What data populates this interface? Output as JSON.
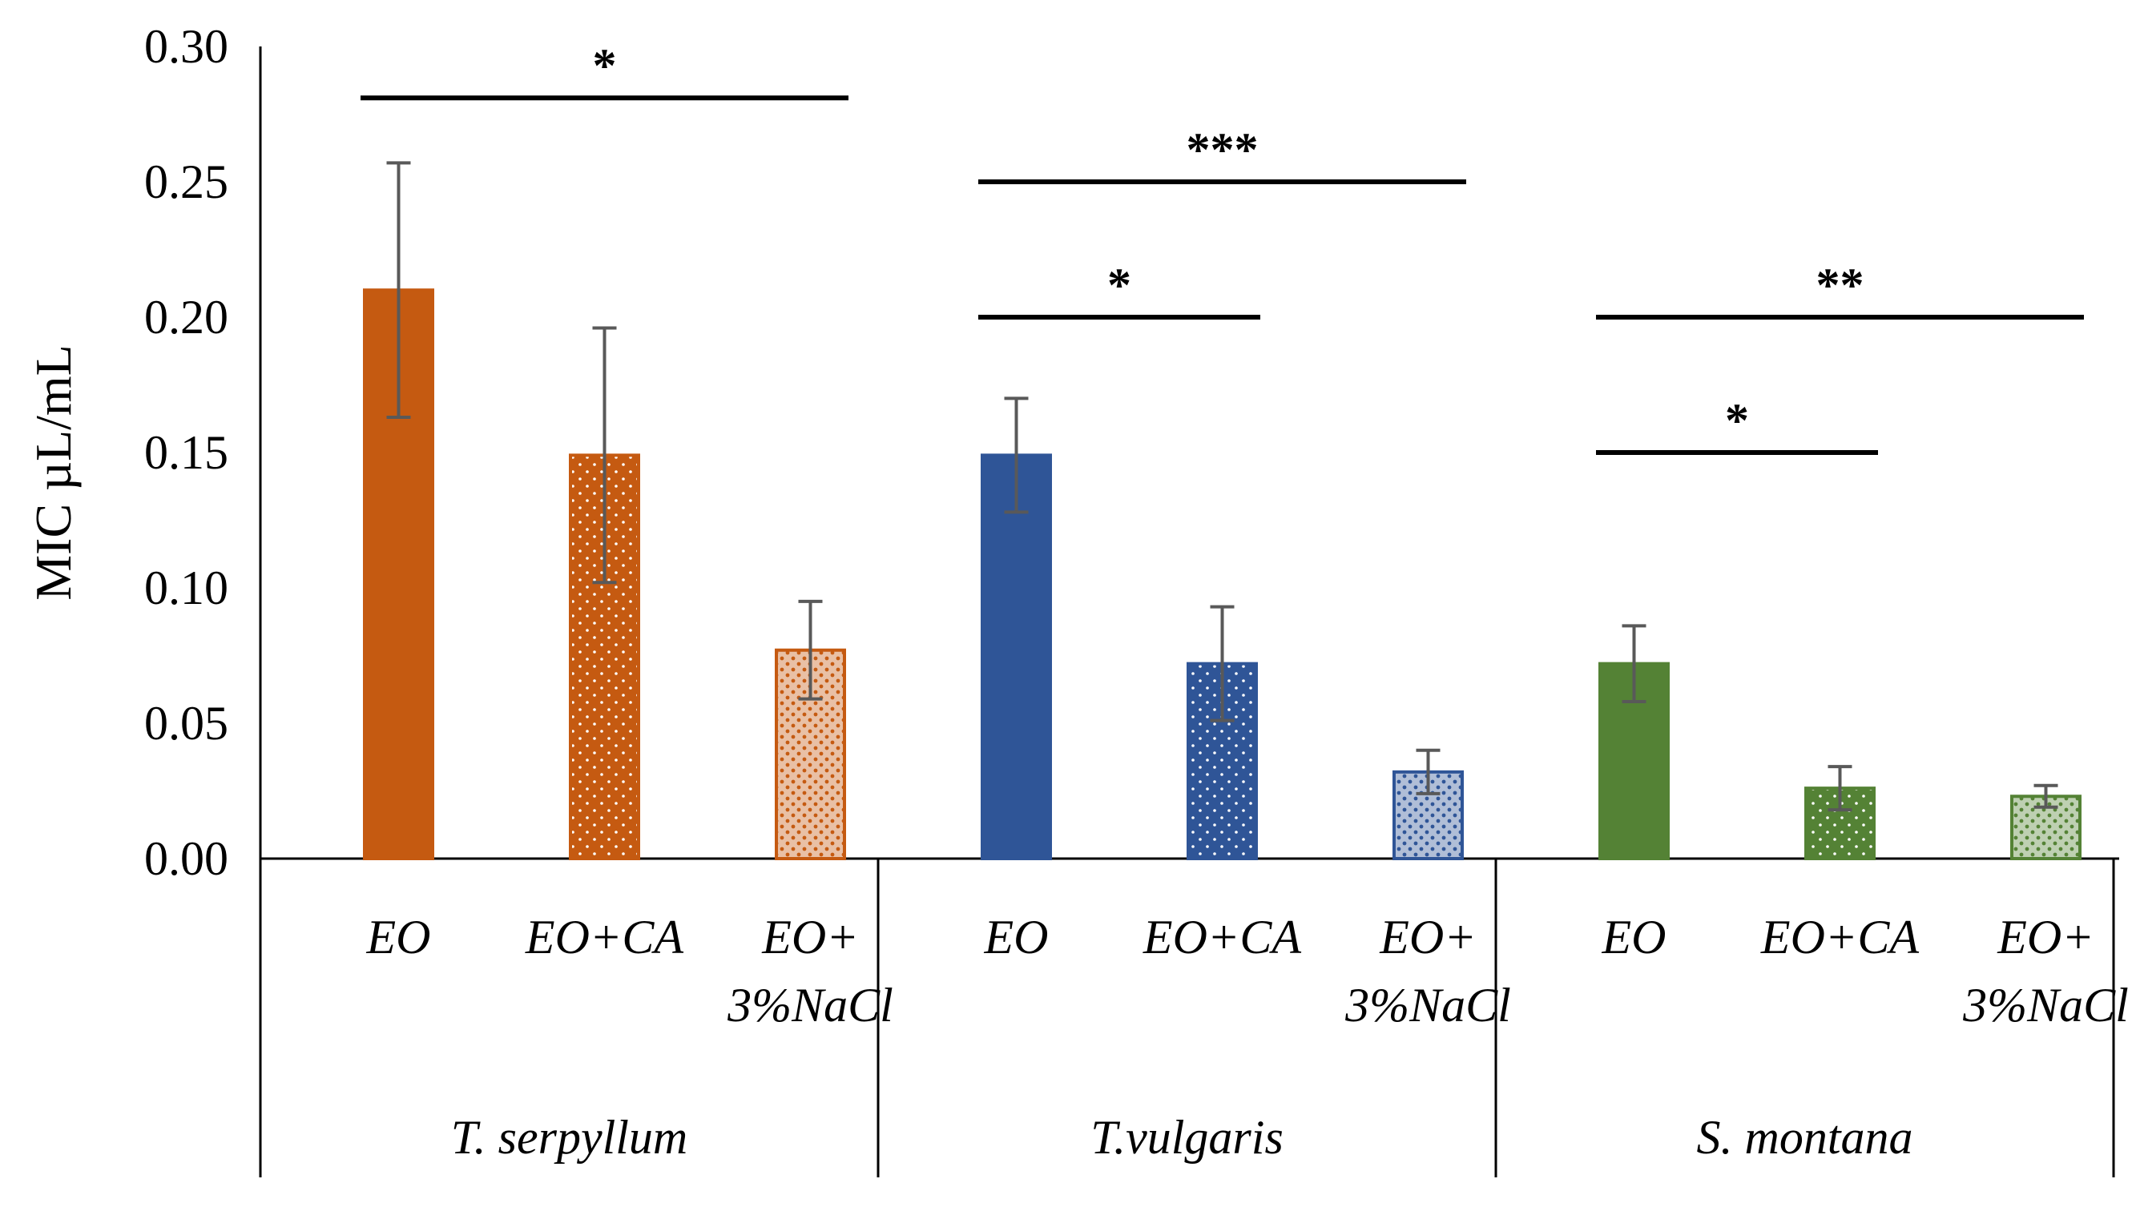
{
  "chart_data": {
    "type": "bar",
    "title": "",
    "xlabel": "",
    "ylabel": "MIC µL/mL",
    "ylim": [
      0,
      0.3
    ],
    "yticks": [
      "0.00",
      "0.05",
      "0.10",
      "0.15",
      "0.20",
      "0.25",
      "0.30"
    ],
    "grid": false,
    "groups": [
      {
        "name": "T. serpyllum",
        "color": "#C55A11",
        "bars": [
          {
            "label": [
              "EO"
            ],
            "value": 0.21,
            "err": 0.047,
            "pattern": "solid"
          },
          {
            "label": [
              "EO+CA"
            ],
            "value": 0.149,
            "err": 0.047,
            "pattern": "dots-sparse"
          },
          {
            "label": [
              "EO+",
              "3%NaCl"
            ],
            "value": 0.077,
            "err": 0.018,
            "pattern": "dots-dense"
          }
        ],
        "significance": [
          {
            "from": 0,
            "to": 2,
            "label": "*",
            "y": 0.281
          }
        ]
      },
      {
        "name": "T.vulgaris",
        "color": "#2F5597",
        "bars": [
          {
            "label": [
              "EO"
            ],
            "value": 0.149,
            "err": 0.021,
            "pattern": "solid"
          },
          {
            "label": [
              "EO+CA"
            ],
            "value": 0.072,
            "err": 0.021,
            "pattern": "dots-sparse"
          },
          {
            "label": [
              "EO+",
              "3%NaCl"
            ],
            "value": 0.032,
            "err": 0.008,
            "pattern": "dots-dense"
          }
        ],
        "significance": [
          {
            "from": 0,
            "to": 2,
            "label": "***",
            "y": 0.25
          },
          {
            "from": 0,
            "to": 1,
            "label": "*",
            "y": 0.2
          }
        ]
      },
      {
        "name": "S. montana",
        "color": "#548235",
        "bars": [
          {
            "label": [
              "EO"
            ],
            "value": 0.072,
            "err": 0.014,
            "pattern": "solid"
          },
          {
            "label": [
              "EO+CA"
            ],
            "value": 0.026,
            "err": 0.008,
            "pattern": "dots-sparse"
          },
          {
            "label": [
              "EO+",
              "3%NaCl"
            ],
            "value": 0.023,
            "err": 0.004,
            "pattern": "dots-dense"
          }
        ],
        "significance": [
          {
            "from": 0,
            "to": 2,
            "label": "**",
            "y": 0.2
          },
          {
            "from": 0,
            "to": 1,
            "label": "*",
            "y": 0.15
          }
        ]
      }
    ]
  }
}
